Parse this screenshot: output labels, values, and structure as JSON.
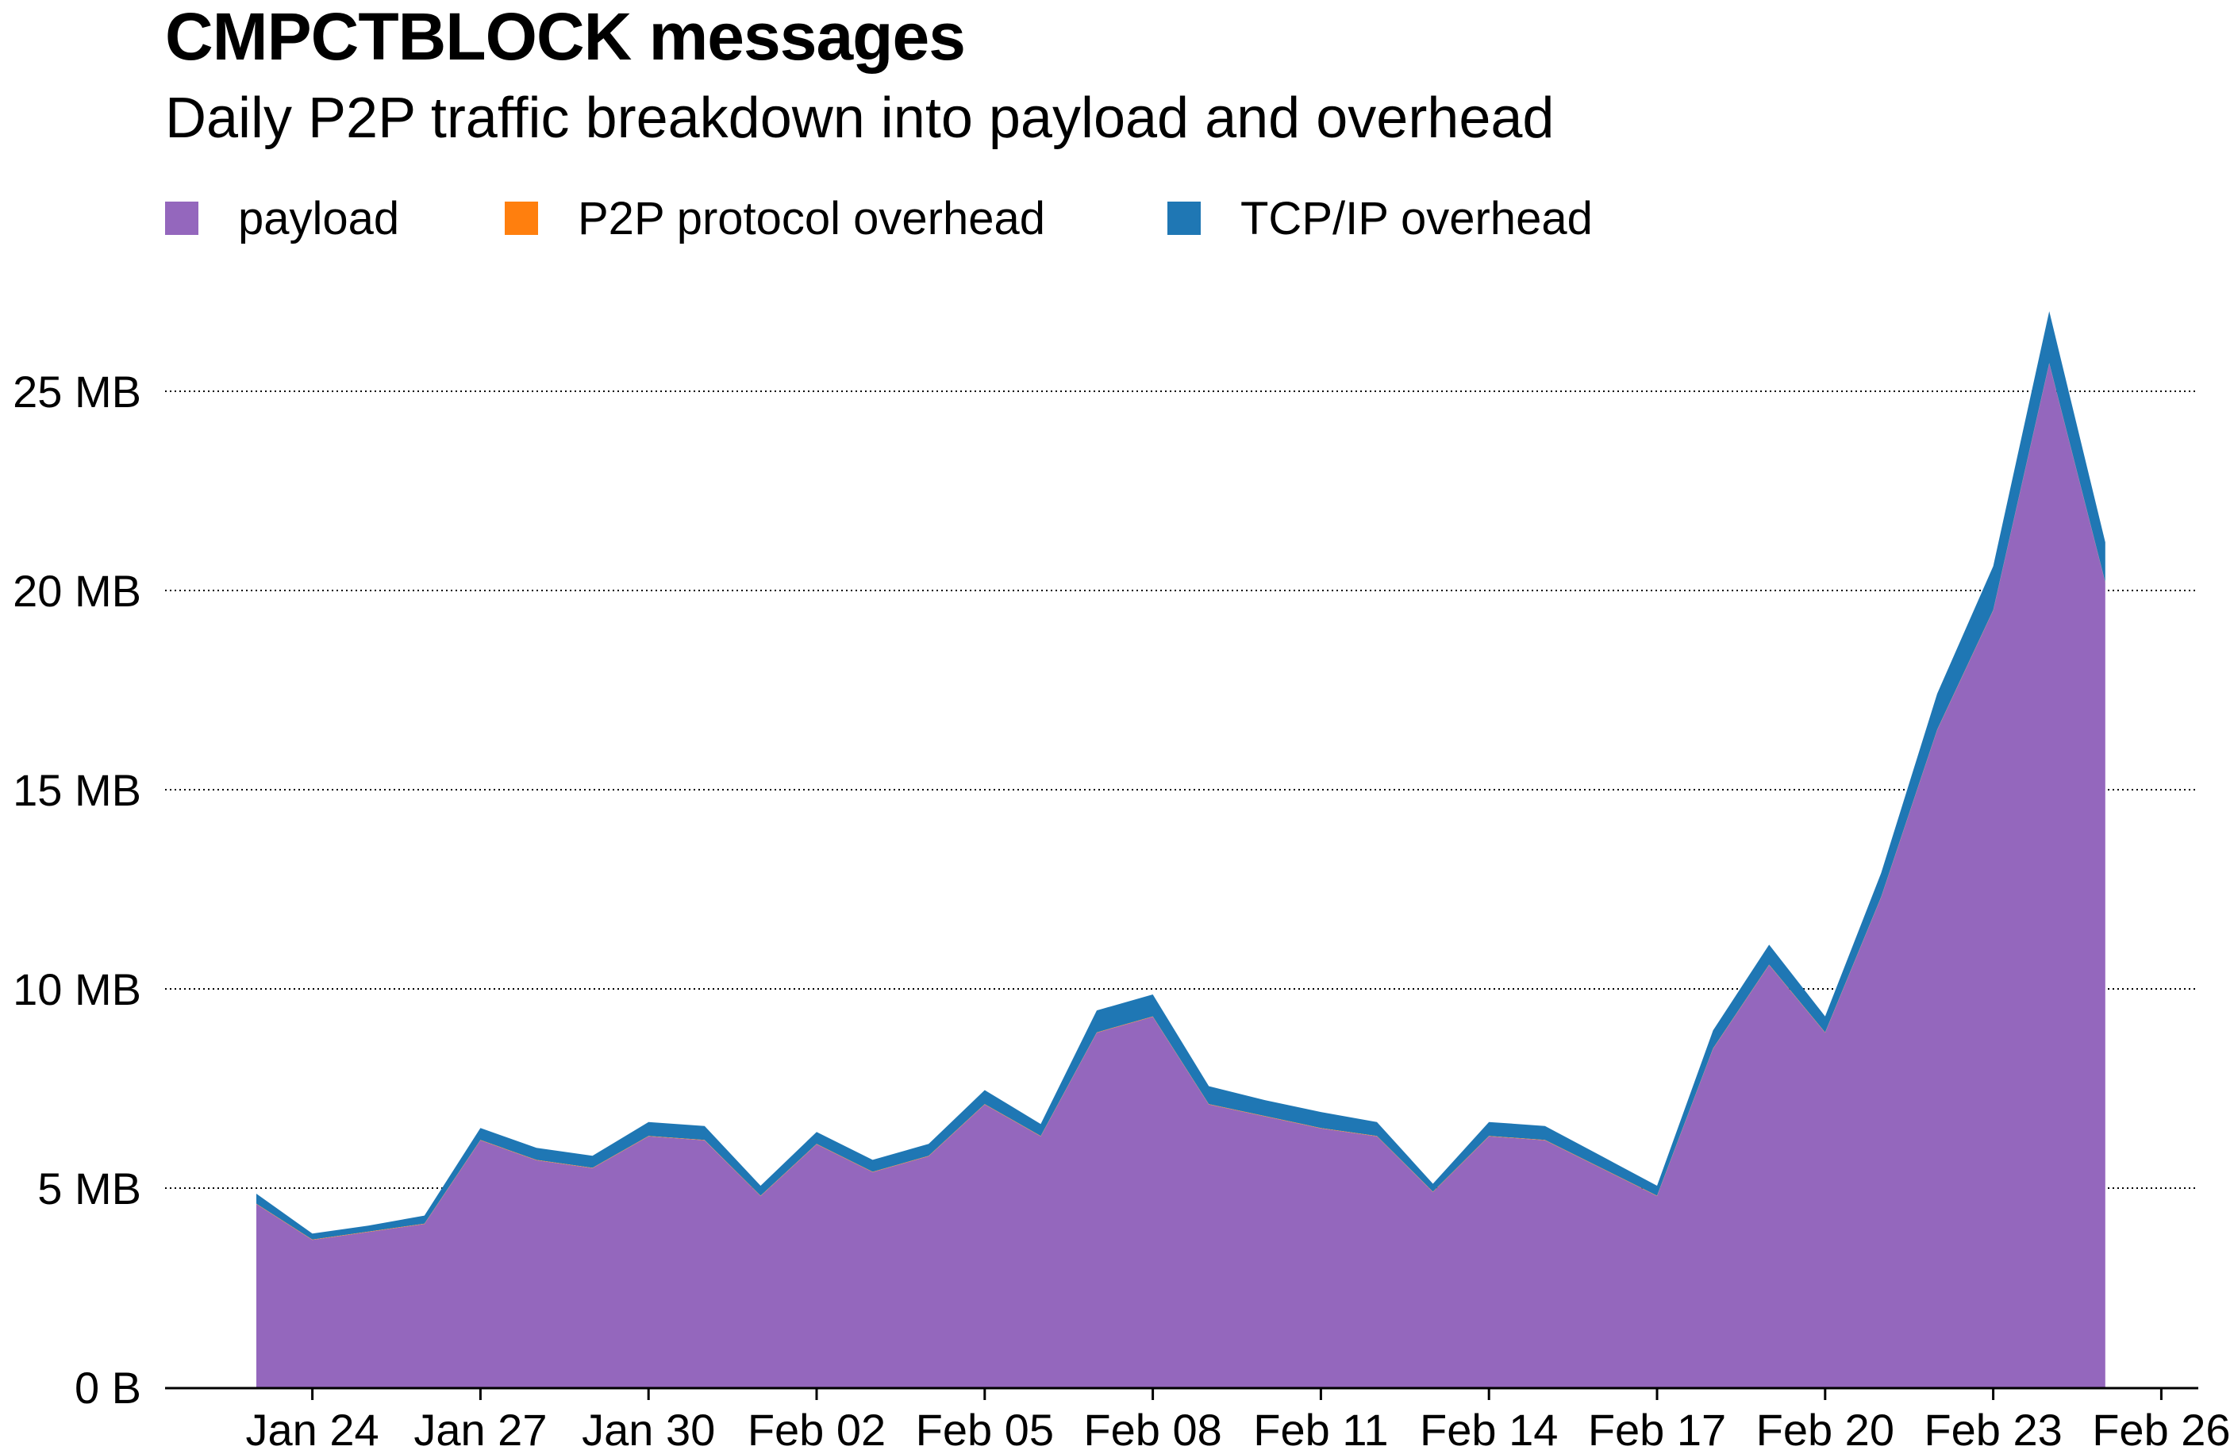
{
  "title": "CMPCTBLOCK messages",
  "subtitle": "Daily P2P traffic breakdown into payload and overhead",
  "legend": [
    {
      "label": "payload",
      "color": "#9467bd"
    },
    {
      "label": "P2P protocol overhead",
      "color": "#ff7f0e"
    },
    {
      "label": "TCP/IP overhead",
      "color": "#1f77b4"
    }
  ],
  "chart_data": {
    "type": "area",
    "stacked": true,
    "title": "CMPCTBLOCK messages",
    "subtitle": "Daily P2P traffic breakdown into payload and overhead",
    "xlabel": "",
    "ylabel": "",
    "x_ticks": [
      "Jan 24",
      "Jan 27",
      "Jan 30",
      "Feb 02",
      "Feb 05",
      "Feb 08",
      "Feb 11",
      "Feb 14",
      "Feb 17",
      "Feb 20",
      "Feb 23",
      "Feb 26"
    ],
    "y_ticks": [
      "0 B",
      "5 MB",
      "10 MB",
      "15 MB",
      "20 MB",
      "25 MB"
    ],
    "y_tick_values": [
      0,
      5,
      10,
      15,
      20,
      25
    ],
    "y_unit": "MB",
    "ylim": [
      0,
      27.5
    ],
    "grid": "horizontal dotted",
    "legend_position": "top-left",
    "dates": [
      "2023-01-23",
      "2023-01-24",
      "2023-01-25",
      "2023-01-26",
      "2023-01-27",
      "2023-01-28",
      "2023-01-29",
      "2023-01-30",
      "2023-01-31",
      "2023-02-01",
      "2023-02-02",
      "2023-02-03",
      "2023-02-04",
      "2023-02-05",
      "2023-02-06",
      "2023-02-07",
      "2023-02-08",
      "2023-02-09",
      "2023-02-10",
      "2023-02-11",
      "2023-02-12",
      "2023-02-13",
      "2023-02-14",
      "2023-02-15",
      "2023-02-16",
      "2023-02-17",
      "2023-02-18",
      "2023-02-19",
      "2023-02-20",
      "2023-02-21",
      "2023-02-22",
      "2023-02-23",
      "2023-02-24",
      "2023-02-25"
    ],
    "series": [
      {
        "name": "payload",
        "color": "#9467bd",
        "values": [
          4.6,
          3.7,
          3.9,
          4.1,
          6.2,
          5.7,
          5.5,
          6.3,
          6.2,
          4.8,
          6.1,
          5.4,
          5.8,
          7.1,
          6.3,
          8.9,
          9.3,
          7.1,
          6.8,
          6.5,
          6.3,
          4.9,
          6.3,
          6.2,
          5.5,
          4.8,
          8.5,
          10.6,
          8.9,
          12.3,
          16.5,
          19.5,
          25.7,
          20.2
        ]
      },
      {
        "name": "P2P protocol overhead",
        "color": "#ff7f0e",
        "values": [
          0.01,
          0.01,
          0.01,
          0.01,
          0.01,
          0.01,
          0.01,
          0.01,
          0.01,
          0.01,
          0.01,
          0.01,
          0.01,
          0.01,
          0.01,
          0.01,
          0.01,
          0.01,
          0.01,
          0.01,
          0.01,
          0.01,
          0.01,
          0.01,
          0.01,
          0.01,
          0.01,
          0.01,
          0.01,
          0.01,
          0.01,
          0.01,
          0.01,
          0.01
        ]
      },
      {
        "name": "TCP/IP overhead",
        "color": "#1f77b4",
        "values": [
          0.25,
          0.15,
          0.15,
          0.2,
          0.3,
          0.3,
          0.3,
          0.35,
          0.35,
          0.25,
          0.3,
          0.3,
          0.3,
          0.35,
          0.3,
          0.55,
          0.55,
          0.45,
          0.4,
          0.4,
          0.35,
          0.2,
          0.35,
          0.35,
          0.3,
          0.25,
          0.45,
          0.5,
          0.4,
          0.6,
          0.9,
          1.1,
          1.3,
          1.0
        ]
      }
    ]
  }
}
